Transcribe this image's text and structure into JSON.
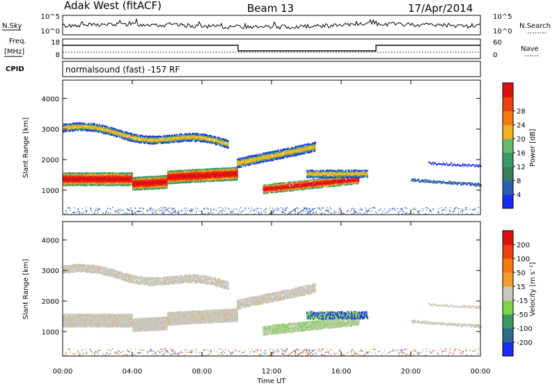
{
  "header": {
    "station": "Adak West (fitACF)",
    "beam": "Beam 13",
    "date": "17/Apr/2014"
  },
  "side_labels": {
    "nsky": "N.Sky",
    "freq_line1": "Freq.",
    "freq_line2": "[MHz]",
    "cpid": "CPID",
    "nsearch": "N.Search",
    "nave": "Nave"
  },
  "noise_panel": {
    "left_ticks": [
      "10^5",
      "10^0"
    ],
    "right_ticks": [
      "10^5",
      "10^0"
    ]
  },
  "freq_panel": {
    "left_ticks": [
      "18",
      "8"
    ],
    "right_ticks": [
      "60",
      "0"
    ]
  },
  "cpid_panel": {
    "text": "normalsound (fast) -157 RF"
  },
  "colors": {
    "power_scale": [
      "#1a2bf0",
      "#2a5fb0",
      "#3a7d5a",
      "#3b9a6a",
      "#6ab870",
      "#f0b020",
      "#f47a10",
      "#ee4010",
      "#dd1010"
    ],
    "velocity_scale": [
      "#1a2bf0",
      "#2e6a8a",
      "#3a9860",
      "#7dd44a",
      "#c8c8c0",
      "#f0a030",
      "#f47a10",
      "#ee4010",
      "#dd1010"
    ]
  },
  "chart_data": [
    {
      "type": "heatmap",
      "title": "",
      "ylabel": "Slant Range [km]",
      "xlabel": "",
      "ylim": [
        200,
        4600
      ],
      "xlim": [
        "00:00",
        "24:00"
      ],
      "yticks": [
        "1000",
        "2000",
        "3000",
        "4000"
      ],
      "xticks": [
        "00:00",
        "04:00",
        "08:00",
        "12:00",
        "16:00",
        "20:00",
        "00:00"
      ],
      "colorbar": {
        "label": "Power [dB]",
        "ticks": [
          "4",
          "8",
          "12",
          "16",
          "20",
          "24",
          "28"
        ]
      }
    },
    {
      "type": "heatmap",
      "title": "",
      "ylabel": "Slant Range [km]",
      "xlabel": "Time UT",
      "ylim": [
        200,
        4600
      ],
      "xlim": [
        "00:00",
        "24:00"
      ],
      "yticks": [
        "1000",
        "2000",
        "3000",
        "4000"
      ],
      "xticks": [
        "00:00",
        "04:00",
        "08:00",
        "12:00",
        "16:00",
        "20:00",
        "00:00"
      ],
      "colorbar": {
        "label": "Velocity [m s⁻¹]",
        "ticks": [
          "200",
          "100",
          "50",
          "15",
          "-15",
          "-50",
          "-100",
          "-200"
        ]
      }
    }
  ]
}
